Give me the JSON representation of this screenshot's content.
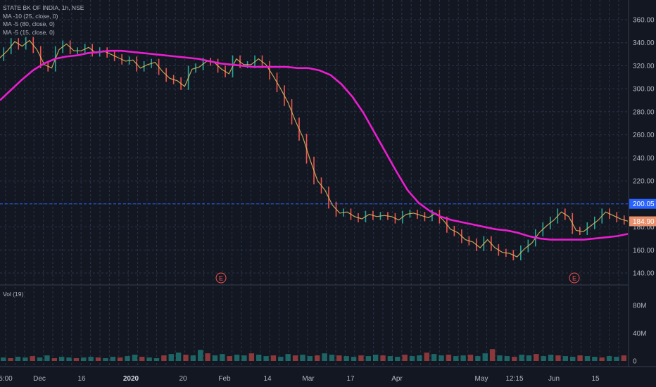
{
  "legend": {
    "title": "STATE BK OF INDIA, 1h, NSE",
    "ma1": "MA -10 (25, close, 0)",
    "ma2": "MA -5 (80, close, 0)",
    "ma3": "MA -5 (15, close, 0)"
  },
  "volume_label": "Vol (19)",
  "colors": {
    "background": "#131722",
    "grid": "#2a3347",
    "ma_long": "#e91ecf",
    "price_line": "#2962ff",
    "price_tag": "#e9906c",
    "candle_up": "#26a69a",
    "candle_down": "#ef5350"
  },
  "price_tags": {
    "level": "200.05",
    "last": "184.90"
  },
  "event_markers": [
    "E",
    "E"
  ],
  "chart_data": {
    "type": "line",
    "title": "STATE BK OF INDIA, 1h, NSE",
    "y_axis": {
      "ticks": [
        "360.00",
        "340.00",
        "320.00",
        "300.00",
        "280.00",
        "260.00",
        "240.00",
        "220.00",
        "200.00",
        "180.00",
        "160.00",
        "140.00"
      ],
      "range": [
        130,
        370
      ]
    },
    "volume_axis": {
      "ticks": [
        "80M",
        "40M",
        "0"
      ],
      "range": [
        0,
        100
      ]
    },
    "x_axis": {
      "ticks": [
        {
          "label": "5:00",
          "bold": false
        },
        {
          "label": "Dec",
          "bold": false
        },
        {
          "label": "16",
          "bold": false
        },
        {
          "label": "2020",
          "bold": true
        },
        {
          "label": "20",
          "bold": false
        },
        {
          "label": "Feb",
          "bold": false
        },
        {
          "label": "14",
          "bold": false
        },
        {
          "label": "Mar",
          "bold": false
        },
        {
          "label": "17",
          "bold": false
        },
        {
          "label": "Apr",
          "bold": false
        },
        {
          "label": "May",
          "bold": false
        },
        {
          "label": "12:15",
          "bold": false
        },
        {
          "label": "Jun",
          "bold": false
        },
        {
          "label": "15",
          "bold": false
        }
      ]
    },
    "series": [
      {
        "name": "Close",
        "values": [
          327,
          333,
          341,
          337,
          342,
          334,
          321,
          318,
          334,
          339,
          333,
          333,
          336,
          331,
          333,
          330,
          327,
          324,
          325,
          318,
          321,
          323,
          315,
          309,
          307,
          302,
          317,
          319,
          324,
          323,
          317,
          313,
          326,
          321,
          321,
          326,
          321,
          311,
          300,
          288,
          272,
          258,
          238,
          220,
          212,
          199,
          192,
          193,
          189,
          187,
          191,
          189,
          190,
          189,
          186,
          191,
          192,
          190,
          188,
          192,
          186,
          178,
          175,
          169,
          167,
          162,
          169,
          162,
          158,
          157,
          154,
          161,
          166,
          175,
          181,
          186,
          193,
          189,
          177,
          176,
          181,
          186,
          193,
          190,
          187,
          185
        ]
      },
      {
        "name": "MA 80",
        "values": [
          290,
          299,
          308,
          316,
          322,
          326,
          328,
          329,
          331,
          332,
          333,
          333,
          332,
          331,
          330,
          329,
          328,
          327,
          326,
          324,
          322,
          321,
          320,
          319,
          319,
          319,
          319,
          318,
          318,
          316,
          312,
          304,
          293,
          279,
          262,
          245,
          228,
          212,
          201,
          194,
          189,
          186,
          184,
          182,
          180,
          178,
          177,
          175,
          172,
          170,
          169,
          169,
          169,
          169,
          170,
          171,
          172,
          174
        ]
      }
    ],
    "volume": [
      5,
      4,
      6,
      5,
      7,
      5,
      8,
      4,
      6,
      5,
      4,
      5,
      6,
      5,
      4,
      6,
      5,
      7,
      9,
      6,
      5,
      4,
      8,
      10,
      12,
      9,
      8,
      16,
      11,
      8,
      10,
      7,
      9,
      8,
      11,
      9,
      7,
      8,
      6,
      10,
      8,
      9,
      7,
      8,
      11,
      9,
      8,
      7,
      6,
      8,
      7,
      9,
      8,
      7,
      6,
      9,
      7,
      8,
      12,
      10,
      8,
      9,
      7,
      8,
      9,
      7,
      11,
      17,
      8,
      7,
      6,
      9,
      8,
      10,
      7,
      9,
      8,
      7,
      6,
      8,
      7,
      6,
      5,
      7,
      6,
      8
    ]
  }
}
